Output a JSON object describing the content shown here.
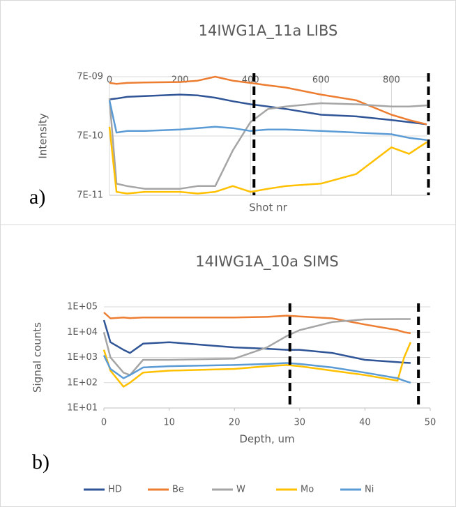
{
  "chart_data": [
    {
      "type": "line",
      "title": "14IWG1A_11a LIBS",
      "panel_label": "a)",
      "ylabel": "Intensity",
      "xlabel": "Shot nr",
      "log_y": true,
      "grid": "both",
      "x_ticks_top": true,
      "x": [
        0,
        20,
        50,
        100,
        200,
        250,
        300,
        350,
        400,
        450,
        500,
        600,
        700,
        800,
        850,
        900
      ],
      "xlim": [
        0,
        900
      ],
      "xticks": [
        0,
        200,
        400,
        600,
        800
      ],
      "ylim": [
        7e-11,
        7e-09
      ],
      "yticks": [
        {
          "value": 7e-11,
          "label": "7E-11"
        },
        {
          "value": 7e-10,
          "label": "7E-10"
        },
        {
          "value": 7e-09,
          "label": "7E-09"
        }
      ],
      "vlines": [
        410,
        905
      ],
      "series": [
        {
          "color": "#2f5597",
          "values": [
            2.9e-09,
            3e-09,
            3.2e-09,
            3.3e-09,
            3.5e-09,
            3.4e-09,
            3.1e-09,
            2.7e-09,
            2.4e-09,
            2.2e-09,
            2e-09,
            1.6e-09,
            1.5e-09,
            1.3e-09,
            1.2e-09,
            1.1e-09
          ]
        },
        {
          "color": "#ed7d31",
          "values": [
            5.5e-09,
            5.3e-09,
            5.5e-09,
            5.6e-09,
            5.7e-09,
            6e-09,
            7e-09,
            6e-09,
            5.5e-09,
            5e-09,
            4.6e-09,
            3.5e-09,
            2.8e-09,
            1.6e-09,
            1.3e-09,
            1.1e-09
          ]
        },
        {
          "color": "#a5a5a5",
          "values": [
            3e-09,
            1.1e-10,
            1e-10,
            9e-11,
            9e-11,
            1e-10,
            1e-10,
            4e-10,
            1.2e-09,
            2e-09,
            2.2e-09,
            2.5e-09,
            2.4e-09,
            2.2e-09,
            2.2e-09,
            2.3e-09
          ]
        },
        {
          "color": "#ffc000",
          "values": [
            1e-09,
            8e-11,
            7.5e-11,
            8e-11,
            8e-11,
            7.5e-11,
            8e-11,
            1e-10,
            8e-11,
            9e-11,
            1e-10,
            1.1e-10,
            1.6e-10,
            4.5e-10,
            3.5e-10,
            5.5e-10
          ]
        },
        {
          "color": "#5b9bd5",
          "values": [
            2.8e-09,
            8e-10,
            8.5e-10,
            8.5e-10,
            9e-10,
            9.5e-10,
            1e-09,
            9.5e-10,
            8.5e-10,
            9e-10,
            9e-10,
            8.5e-10,
            8e-10,
            7.5e-10,
            6.5e-10,
            6e-10
          ]
        }
      ]
    },
    {
      "type": "line",
      "title": "14IWG1A_10a SIMS",
      "panel_label": "b)",
      "ylabel": "Signal counts",
      "xlabel": "Depth, um",
      "log_y": true,
      "grid": "y",
      "x_ticks_top": false,
      "x": [
        0,
        1,
        3,
        4,
        6,
        10,
        20,
        25,
        28,
        30,
        35,
        40,
        45,
        46,
        47
      ],
      "xlim": [
        0,
        50
      ],
      "xticks": [
        0,
        10,
        20,
        30,
        40,
        50
      ],
      "ylim": [
        10,
        100000
      ],
      "yticks": [
        {
          "value": 10,
          "label": "1E+01"
        },
        {
          "value": 100,
          "label": "1E+02"
        },
        {
          "value": 1000,
          "label": "1E+03"
        },
        {
          "value": 10000,
          "label": "1E+04"
        },
        {
          "value": 100000,
          "label": "1E+05"
        }
      ],
      "vlines": [
        28.5,
        48.2
      ],
      "series": [
        {
          "name": "HD",
          "color": "#2f5597",
          "values": [
            30000,
            4000,
            2000,
            1500,
            3500,
            4000,
            2500,
            2200,
            2000,
            2000,
            1500,
            800,
            650,
            620,
            600
          ]
        },
        {
          "name": "Be",
          "color": "#ed7d31",
          "values": [
            60000,
            35000,
            38000,
            36000,
            38000,
            38000,
            38000,
            40000,
            45000,
            42000,
            35000,
            20000,
            12000,
            10000,
            9000
          ]
        },
        {
          "name": "W",
          "color": "#a5a5a5",
          "values": [
            10000,
            1000,
            250,
            200,
            800,
            800,
            900,
            2500,
            7000,
            12000,
            25000,
            32000,
            33000,
            33000,
            33000
          ]
        },
        {
          "name": "Mo",
          "color": "#ffc000",
          "values": [
            2000,
            300,
            70,
            100,
            250,
            300,
            350,
            450,
            500,
            450,
            300,
            200,
            120,
            1000,
            4000
          ]
        },
        {
          "name": "Ni",
          "color": "#5b9bd5",
          "values": [
            1200,
            350,
            150,
            200,
            400,
            450,
            500,
            550,
            600,
            550,
            400,
            250,
            150,
            120,
            100
          ]
        }
      ]
    }
  ]
}
